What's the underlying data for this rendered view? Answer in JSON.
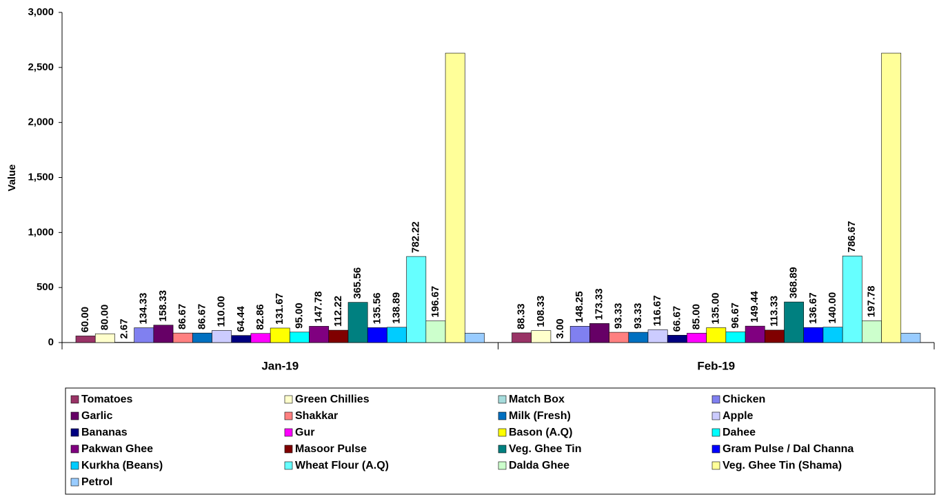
{
  "chart_data": {
    "type": "bar",
    "y_label": "Value",
    "categories": [
      "Jan-19",
      "Feb-19"
    ],
    "ylim": [
      0,
      3000
    ],
    "yticks": [
      0,
      500,
      {
        "value": 1000,
        "label": "1,000"
      },
      {
        "value": 1500,
        "label": "1,500"
      },
      {
        "value": 2000,
        "label": "2,000"
      },
      {
        "value": 2500,
        "label": "2,500"
      },
      {
        "value": 3000,
        "label": "3,000"
      }
    ],
    "series": [
      {
        "name": "Tomatoes",
        "color": "#993366",
        "values": [
          60,
          88.33
        ],
        "value_labels": [
          "60.00",
          "88.33"
        ]
      },
      {
        "name": "Green Chillies",
        "color": "#FFFFCC",
        "values": [
          80,
          108.33
        ],
        "value_labels": [
          "80.00",
          "108.33"
        ]
      },
      {
        "name": "Match Box",
        "color": "#A6DCDC",
        "values": [
          2.67,
          3
        ],
        "value_labels": [
          "2.67",
          "3.00"
        ]
      },
      {
        "name": "Chicken",
        "color": "#8080F0",
        "values": [
          134.33,
          148.25
        ],
        "value_labels": [
          "134.33",
          "148.25"
        ]
      },
      {
        "name": "Garlic",
        "color": "#660066",
        "values": [
          158.33,
          173.33
        ],
        "value_labels": [
          "158.33",
          "173.33"
        ]
      },
      {
        "name": "Shakkar",
        "color": "#FF8080",
        "values": [
          86.67,
          93.33
        ],
        "value_labels": [
          "86.67",
          "93.33"
        ]
      },
      {
        "name": "Milk (Fresh)",
        "color": "#0070C0",
        "values": [
          86.67,
          93.33
        ],
        "value_labels": [
          "86.67",
          "93.33"
        ]
      },
      {
        "name": "Apple",
        "color": "#CCCCFF",
        "values": [
          110,
          116.67
        ],
        "value_labels": [
          "110.00",
          "116.67"
        ]
      },
      {
        "name": "Bananas",
        "color": "#000080",
        "values": [
          64.44,
          66.67
        ],
        "value_labels": [
          "64.44",
          "66.67"
        ]
      },
      {
        "name": "Gur",
        "color": "#FF00FF",
        "values": [
          82.86,
          85
        ],
        "value_labels": [
          "82.86",
          "85.00"
        ]
      },
      {
        "name": "Bason (A.Q)",
        "color": "#FFFF00",
        "values": [
          131.67,
          135
        ],
        "value_labels": [
          "131.67",
          "135.00"
        ]
      },
      {
        "name": "Dahee",
        "color": "#00FFFF",
        "values": [
          95,
          96.67
        ],
        "value_labels": [
          "95.00",
          "96.67"
        ]
      },
      {
        "name": "Pakwan Ghee",
        "color": "#800080",
        "values": [
          147.78,
          149.44
        ],
        "value_labels": [
          "147.78",
          "149.44"
        ]
      },
      {
        "name": "Masoor Pulse",
        "color": "#800000",
        "values": [
          112.22,
          113.33
        ],
        "value_labels": [
          "112.22",
          "113.33"
        ]
      },
      {
        "name": "Veg. Ghee Tin",
        "color": "#008080",
        "values": [
          365.56,
          368.89
        ],
        "value_labels": [
          "365.56",
          "368.89"
        ]
      },
      {
        "name": "Gram Pulse / Dal Channa",
        "color": "#0000FF",
        "values": [
          135.56,
          136.67
        ],
        "value_labels": [
          "135.56",
          "136.67"
        ]
      },
      {
        "name": "Kurkha (Beans)",
        "color": "#00CCFF",
        "values": [
          138.89,
          140
        ],
        "value_labels": [
          "138.89",
          "140.00"
        ]
      },
      {
        "name": "Wheat Flour (A.Q)",
        "color": "#66FFFF",
        "values": [
          782.22,
          786.67
        ],
        "value_labels": [
          "782.22",
          "786.67"
        ]
      },
      {
        "name": "Dalda Ghee",
        "color": "#CCFFCC",
        "values": [
          196.67,
          197.78
        ],
        "value_labels": [
          "196.67",
          "197.78"
        ]
      },
      {
        "name": "Veg. Ghee Tin (Shama)",
        "color": "#FFFF99",
        "values": [
          2630,
          2630
        ]
      },
      {
        "name": "Petrol",
        "color": "#99CCFF",
        "values": [
          85,
          85
        ]
      }
    ]
  }
}
